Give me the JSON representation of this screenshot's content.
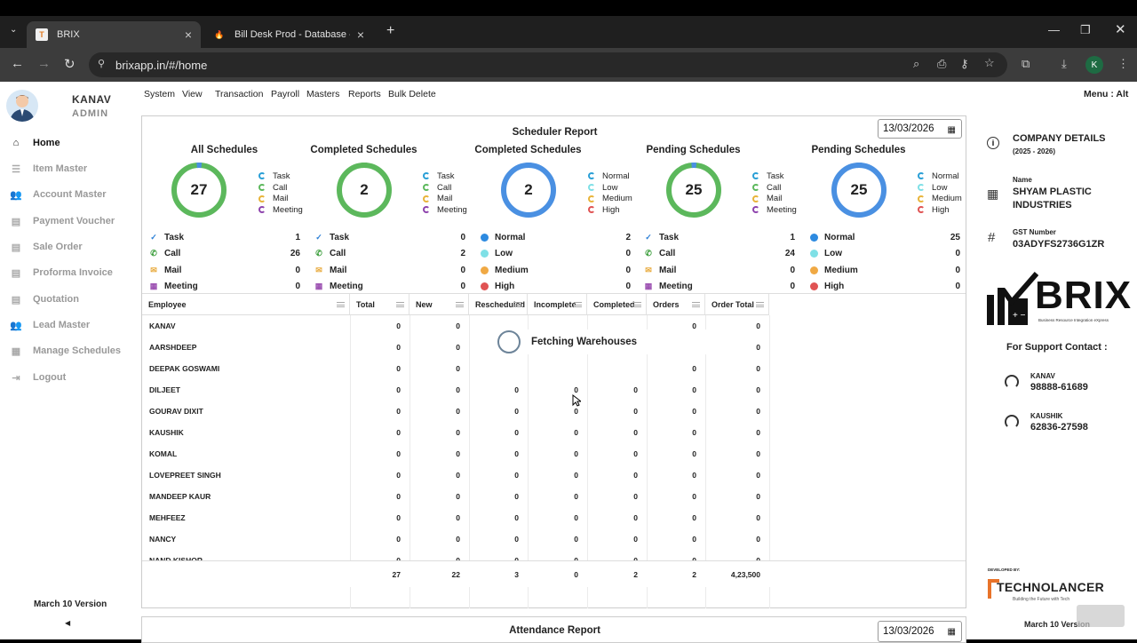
{
  "browser": {
    "tabs": [
      {
        "title": "BRIX",
        "active": true
      },
      {
        "title": "Bill Desk Prod - Database - Dat",
        "active": false
      }
    ],
    "url": "brixapp.in/#/home",
    "profile_initial": "K"
  },
  "user": {
    "name": "KANAV",
    "role": "ADMIN"
  },
  "sidebar": {
    "items": [
      {
        "label": "Home",
        "icon": "home-icon",
        "active": true
      },
      {
        "label": "Item Master",
        "icon": "list-icon",
        "active": false
      },
      {
        "label": "Account Master",
        "icon": "people-icon",
        "active": false
      },
      {
        "label": "Payment Voucher",
        "icon": "document-icon",
        "active": false
      },
      {
        "label": "Sale Order",
        "icon": "document-icon",
        "active": false
      },
      {
        "label": "Proforma Invoice",
        "icon": "document-icon",
        "active": false
      },
      {
        "label": "Quotation",
        "icon": "document-icon",
        "active": false
      },
      {
        "label": "Lead Master",
        "icon": "people-icon",
        "active": false
      },
      {
        "label": "Manage Schedules",
        "icon": "calendar-icon",
        "active": false
      },
      {
        "label": "Logout",
        "icon": "logout-icon",
        "active": false
      }
    ],
    "version": "March 10 Version"
  },
  "menubar": {
    "items": [
      "System",
      "View",
      "Transaction",
      "Payroll",
      "Masters",
      "Reports",
      "Bulk Delete"
    ],
    "shortcut_hint": "Menu : Alt"
  },
  "scheduler": {
    "title": "Scheduler Report",
    "date": "13/03/2026",
    "cards": [
      {
        "title": "All Schedules",
        "total": "27",
        "ring_color": "#5cb85c",
        "accent_color": "#4a90e2",
        "legend": [
          "Task",
          "Call",
          "Mail",
          "Meeting"
        ],
        "stats": [
          {
            "label": "Task",
            "value": "1",
            "icon": "task-icon"
          },
          {
            "label": "Call",
            "value": "26",
            "icon": "phone-icon"
          },
          {
            "label": "Mail",
            "value": "0",
            "icon": "mail-icon"
          },
          {
            "label": "Meeting",
            "value": "0",
            "icon": "calendar-icon"
          }
        ]
      },
      {
        "title": "Completed Schedules",
        "total": "2",
        "ring_color": "#5cb85c",
        "accent_color": "#5cb85c",
        "legend": [
          "Task",
          "Call",
          "Mail",
          "Meeting"
        ],
        "stats": [
          {
            "label": "Task",
            "value": "0",
            "icon": "task-icon"
          },
          {
            "label": "Call",
            "value": "2",
            "icon": "phone-icon"
          },
          {
            "label": "Mail",
            "value": "0",
            "icon": "mail-icon"
          },
          {
            "label": "Meeting",
            "value": "0",
            "icon": "calendar-icon"
          }
        ]
      },
      {
        "title": "Completed Schedules",
        "total": "2",
        "ring_color": "#4a90e2",
        "accent_color": "#4a90e2",
        "legend": [
          "Normal",
          "Low",
          "Medium",
          "High"
        ],
        "stats": [
          {
            "label": "Normal",
            "value": "2",
            "icon": "dot",
            "color": "#2d8ae0"
          },
          {
            "label": "Low",
            "value": "0",
            "icon": "dot",
            "color": "#7fe0e6"
          },
          {
            "label": "Medium",
            "value": "0",
            "icon": "dot",
            "color": "#f0a944"
          },
          {
            "label": "High",
            "value": "0",
            "icon": "dot",
            "color": "#e05353"
          }
        ]
      },
      {
        "title": "Pending Schedules",
        "total": "25",
        "ring_color": "#5cb85c",
        "accent_color": "#4a90e2",
        "legend": [
          "Task",
          "Call",
          "Mail",
          "Meeting"
        ],
        "stats": [
          {
            "label": "Task",
            "value": "1",
            "icon": "task-icon"
          },
          {
            "label": "Call",
            "value": "24",
            "icon": "phone-icon"
          },
          {
            "label": "Mail",
            "value": "0",
            "icon": "mail-icon"
          },
          {
            "label": "Meeting",
            "value": "0",
            "icon": "calendar-icon"
          }
        ]
      },
      {
        "title": "Pending Schedules",
        "total": "25",
        "ring_color": "#4a90e2",
        "accent_color": "#4a90e2",
        "legend": [
          "Normal",
          "Low",
          "Medium",
          "High"
        ],
        "stats": [
          {
            "label": "Normal",
            "value": "25",
            "icon": "dot",
            "color": "#2d8ae0"
          },
          {
            "label": "Low",
            "value": "0",
            "icon": "dot",
            "color": "#7fe0e6"
          },
          {
            "label": "Medium",
            "value": "0",
            "icon": "dot",
            "color": "#f0a944"
          },
          {
            "label": "High",
            "value": "0",
            "icon": "dot",
            "color": "#e05353"
          }
        ]
      }
    ],
    "legend_colors": {
      "Task": "#2a9fd6",
      "Call": "#5cb85c",
      "Mail": "#e8b43a",
      "Meeting": "#8e44ad",
      "Normal": "#2a9fd6",
      "Low": "#7fe0e6",
      "Medium": "#e8b43a",
      "High": "#e05353"
    },
    "table": {
      "columns": [
        "Employee",
        "Total",
        "New",
        "Rescheduled",
        "Incomplete",
        "Completed",
        "Orders",
        "Order Total"
      ],
      "rows": [
        {
          "name": "KANAV",
          "values": [
            "0",
            "0",
            "",
            "",
            "",
            "0",
            "0"
          ]
        },
        {
          "name": "AARSHDEEP",
          "values": [
            "0",
            "0",
            "",
            "",
            "",
            "0",
            "0"
          ]
        },
        {
          "name": "DEEPAK GOSWAMI",
          "values": [
            "0",
            "0",
            "",
            "",
            "",
            "0",
            "0"
          ]
        },
        {
          "name": "DILJEET",
          "values": [
            "0",
            "0",
            "0",
            "0",
            "0",
            "0",
            "0"
          ]
        },
        {
          "name": "GOURAV DIXIT",
          "values": [
            "0",
            "0",
            "0",
            "0",
            "0",
            "0",
            "0"
          ]
        },
        {
          "name": "KAUSHIK",
          "values": [
            "0",
            "0",
            "0",
            "0",
            "0",
            "0",
            "0"
          ]
        },
        {
          "name": "KOMAL",
          "values": [
            "0",
            "0",
            "0",
            "0",
            "0",
            "0",
            "0"
          ]
        },
        {
          "name": "LOVEPREET SINGH",
          "values": [
            "0",
            "0",
            "0",
            "0",
            "0",
            "0",
            "0"
          ]
        },
        {
          "name": "MANDEEP KAUR",
          "values": [
            "0",
            "0",
            "0",
            "0",
            "0",
            "0",
            "0"
          ]
        },
        {
          "name": "MEHFEEZ",
          "values": [
            "0",
            "0",
            "0",
            "0",
            "0",
            "0",
            "0"
          ]
        },
        {
          "name": "NANCY",
          "values": [
            "0",
            "0",
            "0",
            "0",
            "0",
            "0",
            "0"
          ]
        },
        {
          "name": "NAND KISHOR",
          "values": [
            "0",
            "0",
            "0",
            "0",
            "0",
            "0",
            "0"
          ]
        }
      ],
      "totals": [
        "27",
        "22",
        "3",
        "0",
        "2",
        "2",
        "4,23,500"
      ],
      "loading_text": "Fetching Warehouses"
    }
  },
  "attendance": {
    "title": "Attendance Report",
    "date": "13/03/2026"
  },
  "company": {
    "heading": "COMPANY DETAILS",
    "period": "(2025 - 2026)",
    "name_label": "Name",
    "name": "SHYAM PLASTIC INDUSTRIES",
    "gst_label": "GST Number",
    "gst": "03ADYFS2736G1ZR",
    "brand": "BRIX",
    "brand_tagline": "Business Resource Integration eXpress",
    "support_heading": "For Support Contact :",
    "contacts": [
      {
        "name": "KANAV",
        "phone": "98888-61689"
      },
      {
        "name": "KAUSHIK",
        "phone": "62836-27598"
      }
    ],
    "developed_by": "DEVELOPED BY:",
    "dev_name": "TECHNOLANCER",
    "dev_tagline": "Building the Future with Tech",
    "version": "March 10 Version"
  }
}
